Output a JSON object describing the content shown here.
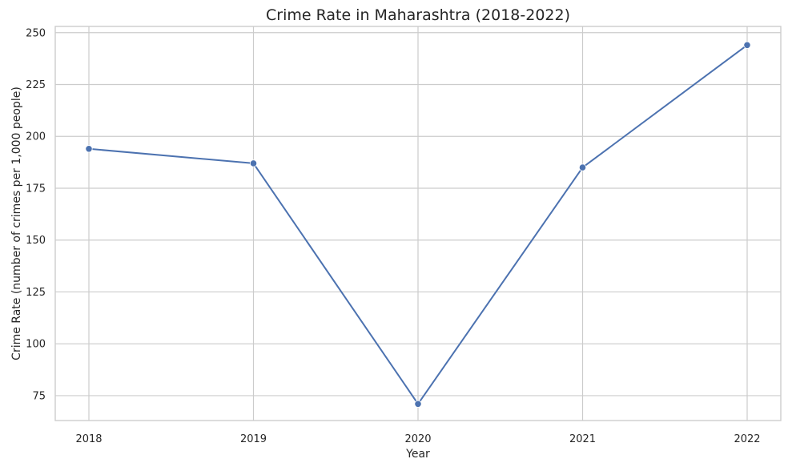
{
  "chart_data": {
    "type": "line",
    "title": "Crime Rate in Maharashtra (2018-2022)",
    "xlabel": "Year",
    "ylabel": "Crime Rate (number of crimes per 1,000 people)",
    "categories": [
      "2018",
      "2019",
      "2020",
      "2021",
      "2022"
    ],
    "series": [
      {
        "values": [
          194,
          187,
          71,
          185,
          244
        ],
        "color": "#4c72b0",
        "marker": "circle"
      }
    ],
    "ylim": [
      63,
      253
    ],
    "yticks": [
      75,
      100,
      125,
      150,
      175,
      200,
      225,
      250
    ],
    "grid": true,
    "legend": "none"
  }
}
